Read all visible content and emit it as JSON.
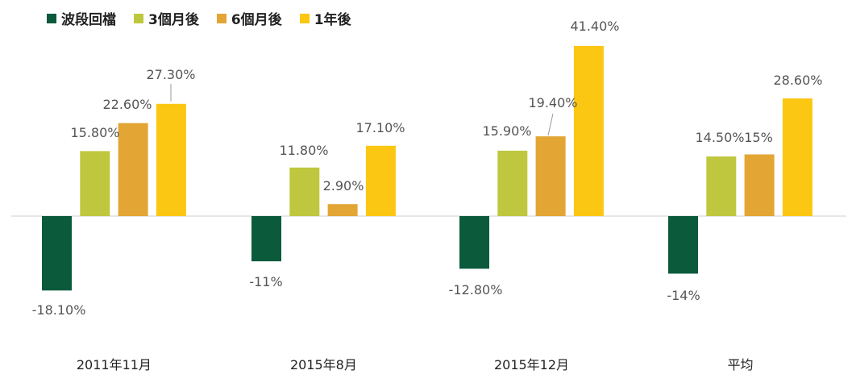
{
  "chart_data": {
    "type": "bar",
    "categories": [
      "2011年11月",
      "2015年8月",
      "2015年12月",
      "平均"
    ],
    "series": [
      {
        "name": "波段回檔",
        "color": "#0b5a3c",
        "values": [
          -18.1,
          -11,
          -12.8,
          -14
        ],
        "labels": [
          "-18.10%",
          "-11%",
          "-12.80%",
          "-14%"
        ]
      },
      {
        "name": "3個月後",
        "color": "#bfc73e",
        "values": [
          15.8,
          11.8,
          15.9,
          14.5
        ],
        "labels": [
          "15.80%",
          "11.80%",
          "15.90%",
          "14.50%"
        ]
      },
      {
        "name": "6個月後",
        "color": "#e3a534",
        "values": [
          22.6,
          2.9,
          19.4,
          15
        ],
        "labels": [
          "22.60%",
          "2.90%",
          "19.40%",
          "15%"
        ]
      },
      {
        "name": "1年後",
        "color": "#fcc713",
        "values": [
          27.3,
          17.1,
          41.4,
          28.6
        ],
        "labels": [
          "27.30%",
          "17.10%",
          "41.40%",
          "28.60%"
        ]
      }
    ],
    "ylim": [
      -27,
      47
    ],
    "legend_position": "top-left",
    "grid": false
  }
}
